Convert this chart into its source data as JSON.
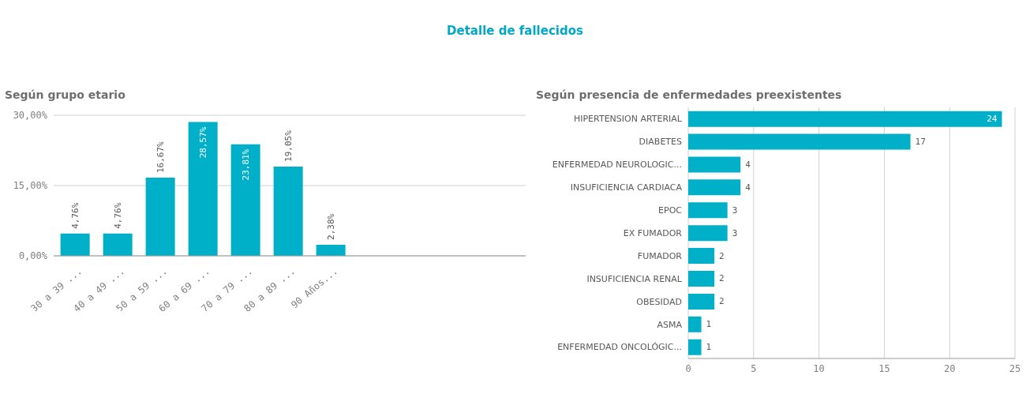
{
  "chart_data": [
    {
      "type": "other",
      "title": "Detalle de fallecidos"
    },
    {
      "type": "bar",
      "title": "Según grupo etario",
      "categories": [
        "30 a 39 ...",
        "40 a 49 ...",
        "50 a 59 ...",
        "60 a 69 ...",
        "70 a 79 ...",
        "80 a 89 ...",
        "90 Años..."
      ],
      "values": [
        4.76,
        4.76,
        16.67,
        28.57,
        23.81,
        19.05,
        2.38
      ],
      "value_labels": [
        "4,76%",
        "4,76%",
        "16,67%",
        "28,57%",
        "23,81%",
        "19,05%",
        "2,38%"
      ],
      "color": "#00b0c8",
      "ylim": [
        0,
        30
      ],
      "yticks": [
        {
          "value": 0,
          "label": "0,00%"
        },
        {
          "value": 15,
          "label": "15,00%"
        },
        {
          "value": 30,
          "label": "30,00%"
        }
      ],
      "grid": "y"
    },
    {
      "type": "bar",
      "orientation": "horizontal",
      "title": "Según presencia de enfermedades preexistentes",
      "categories": [
        "HIPERTENSION ARTERIAL",
        "DIABETES",
        "ENFERMEDAD NEUROLOGIC...",
        "INSUFICIENCIA CARDIACA",
        "EPOC",
        "EX FUMADOR",
        "FUMADOR",
        "INSUFICIENCIA RENAL",
        "OBESIDAD",
        "ASMA",
        "ENFERMEDAD ONCOLÓGIC..."
      ],
      "values": [
        24,
        17,
        4,
        4,
        3,
        3,
        2,
        2,
        2,
        1,
        1
      ],
      "color": "#00b0c8",
      "xlim": [
        0,
        25
      ],
      "xticks": [
        0,
        5,
        10,
        15,
        20,
        25
      ],
      "grid": "x",
      "data_labels": true
    }
  ]
}
